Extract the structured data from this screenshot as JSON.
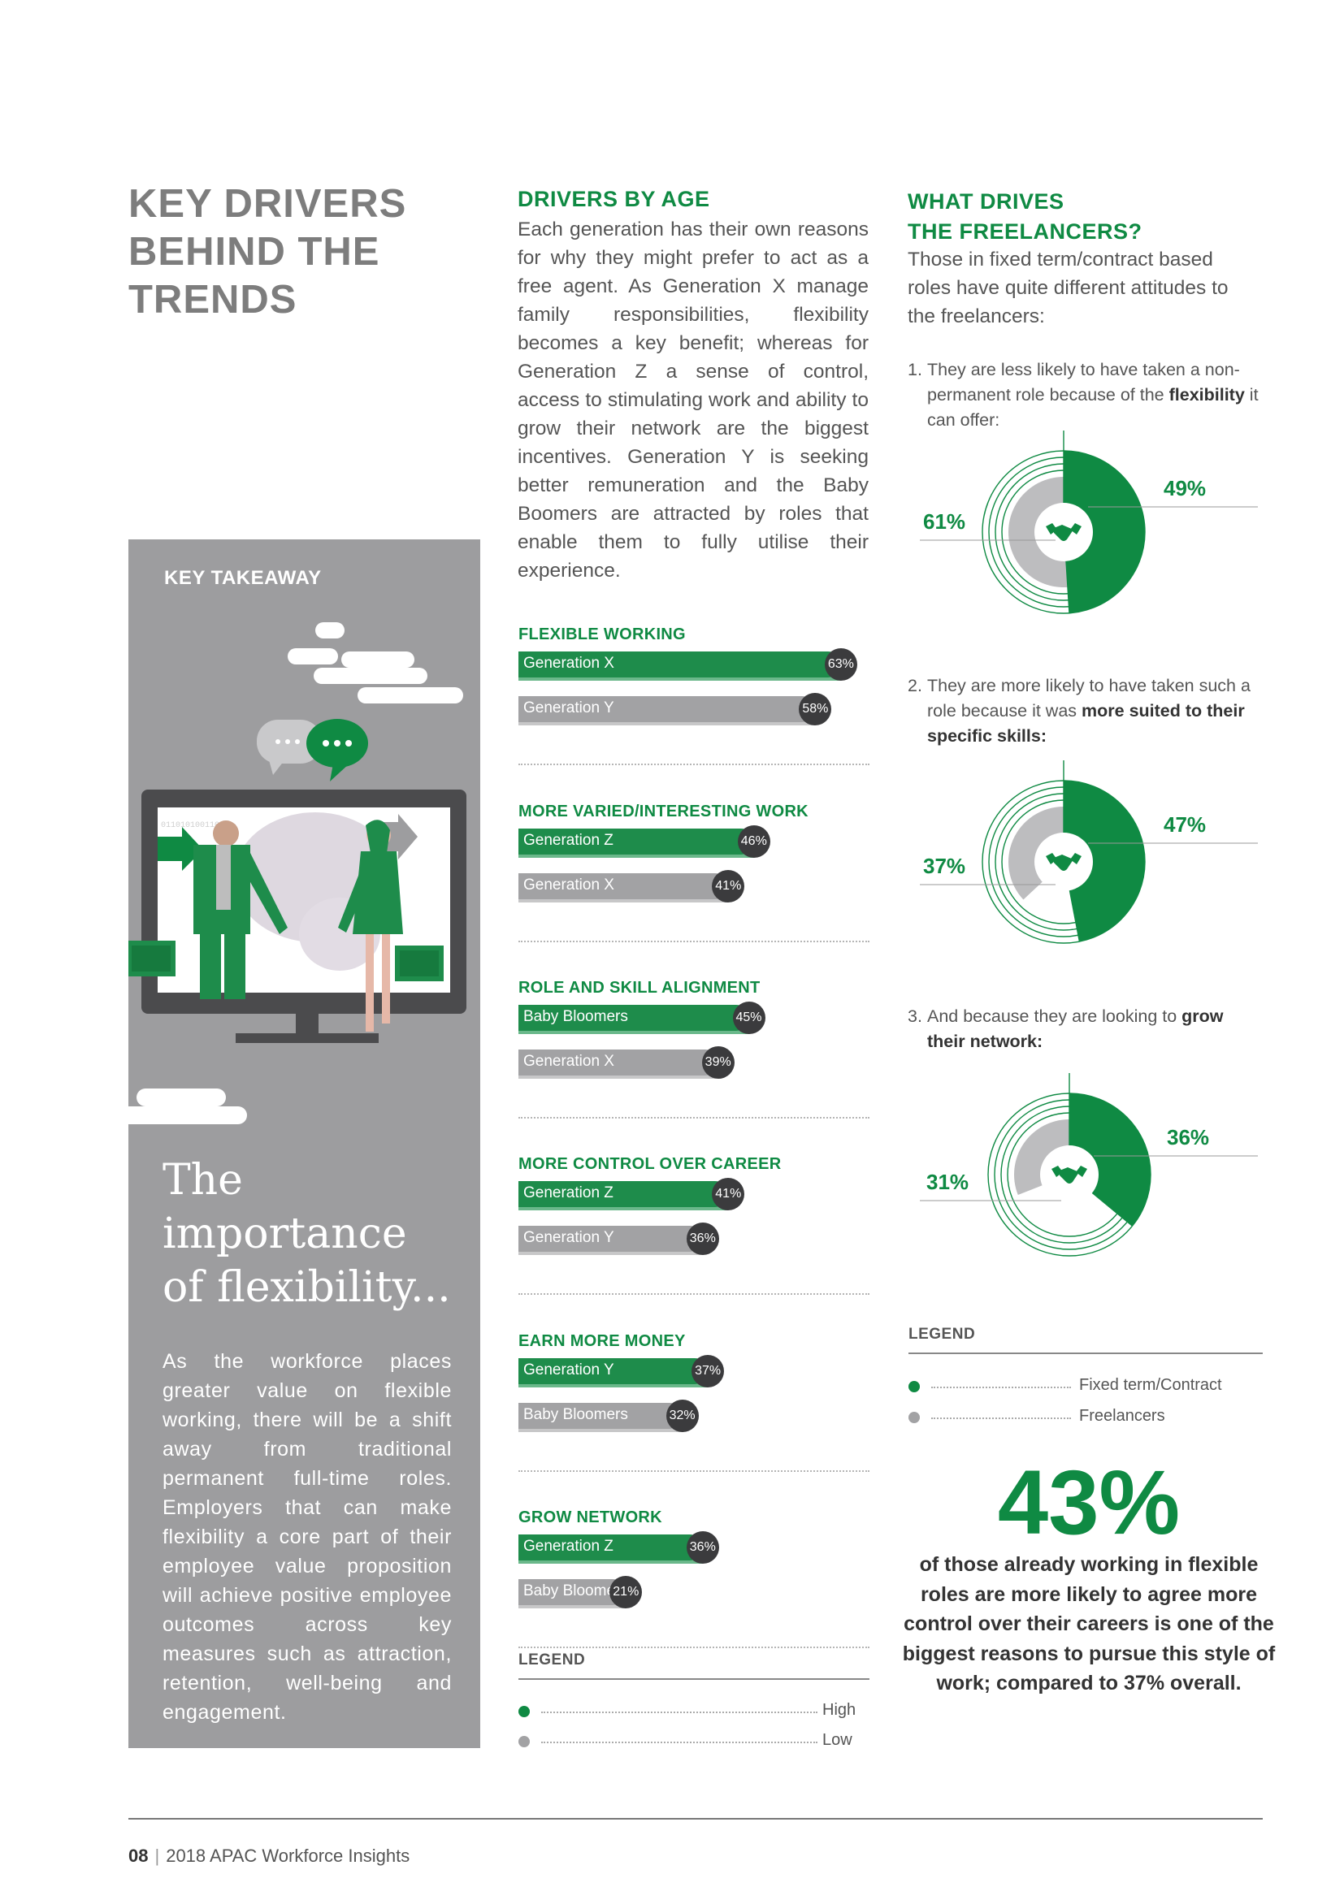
{
  "left": {
    "main_title": "KEY DRIVERS\nBEHIND THE\nTRENDS",
    "takeaway_label": "KEY TAKEAWAY",
    "quote_title": "The\nimportance\nof flexibility...",
    "body": "As the workforce places greater value on flexible working, there will be a shift away from traditional permanent full-time roles. Employers that can make flexibility a core part of their employee value proposition will achieve positive employee outcomes across key measures such as attraction, retention, well-being and engagement.",
    "monitor_text": "01101010011010"
  },
  "middle": {
    "title": "DRIVERS BY AGE",
    "body": "Each generation has their own reasons for why they might prefer to act as a free agent. As Generation X manage family responsibilities, flexibility becomes a key benefit; whereas for Generation Z a sense of control, access to stimulating work and ability to grow their network are the biggest incentives. Generation Y is seeking better remuneration and the Baby Boomers are attracted by roles that enable them to fully utilise their experience.",
    "legend_title": "LEGEND",
    "legend_high": "High",
    "legend_low": "Low"
  },
  "chart_data": {
    "type": "bar",
    "title": "Drivers by age",
    "legend": [
      "High",
      "Low"
    ],
    "xlim": [
      0,
      100
    ],
    "groups": [
      {
        "title": "FLEXIBLE WORKING",
        "bars": [
          {
            "name": "Generation X",
            "value": 63,
            "value_label": "63%",
            "level": "high"
          },
          {
            "name": "Generation Y",
            "value": 58,
            "value_label": "58%",
            "level": "low"
          }
        ]
      },
      {
        "title": "MORE VARIED/INTERESTING WORK",
        "bars": [
          {
            "name": "Generation Z",
            "value": 46,
            "value_label": "46%",
            "level": "high"
          },
          {
            "name": "Generation X",
            "value": 41,
            "value_label": "41%",
            "level": "low"
          }
        ]
      },
      {
        "title": "ROLE AND SKILL ALIGNMENT",
        "bars": [
          {
            "name": "Baby Bloomers",
            "value": 45,
            "value_label": "45%",
            "level": "high"
          },
          {
            "name": "Generation X",
            "value": 39,
            "value_label": "39%",
            "level": "low"
          }
        ]
      },
      {
        "title": "MORE CONTROL OVER CAREER",
        "bars": [
          {
            "name": "Generation Z",
            "value": 41,
            "value_label": "41%",
            "level": "high"
          },
          {
            "name": "Generation Y",
            "value": 36,
            "value_label": "36%",
            "level": "low"
          }
        ]
      },
      {
        "title": "EARN MORE MONEY",
        "bars": [
          {
            "name": "Generation Y",
            "value": 37,
            "value_label": "37%",
            "level": "high"
          },
          {
            "name": "Baby Bloomers",
            "value": 32,
            "value_label": "32%",
            "level": "low"
          }
        ]
      },
      {
        "title": "GROW NETWORK",
        "bars": [
          {
            "name": "Generation Z",
            "value": 36,
            "value_label": "36%",
            "level": "high"
          },
          {
            "name": "Baby Bloomers",
            "value": 21,
            "value_label": "21%",
            "level": "low"
          }
        ]
      }
    ],
    "donuts": [
      {
        "type": "pie",
        "fixed_term": 49,
        "freelancers": 61,
        "fixed_label": "49%",
        "free_label": "61%"
      },
      {
        "type": "pie",
        "fixed_term": 47,
        "freelancers": 37,
        "fixed_label": "47%",
        "free_label": "37%"
      },
      {
        "type": "pie",
        "fixed_term": 36,
        "freelancers": 31,
        "fixed_label": "36%",
        "free_label": "31%"
      }
    ]
  },
  "right": {
    "title": "WHAT DRIVES\nTHE FREELANCERS?",
    "intro": "Those in fixed term/contract based roles have quite different attitudes to the freelancers:",
    "points": [
      {
        "num": "1.",
        "pre": "They are less likely to have taken a non-permanent role because of the ",
        "bold": "flexibility",
        "post": " it can offer:"
      },
      {
        "num": "2.",
        "pre": "They are more likely to have taken such a role because it was ",
        "bold": "more suited to their specific skills:",
        "post": ""
      },
      {
        "num": "3.",
        "pre": "And because they are looking to ",
        "bold": "grow their network:",
        "post": ""
      }
    ],
    "legend_title": "LEGEND",
    "legend_fixed": "Fixed term/Contract",
    "legend_free": "Freelancers",
    "big_stat": "43%",
    "big_stat_text": "of those already working in flexible roles are more likely to agree more control over their careers is one of the biggest reasons to pursue this style of work; compared to 37% overall."
  },
  "footer": {
    "page": "08",
    "title": "2018 APAC Workforce Insights"
  },
  "colors": {
    "green": "#0f8a43",
    "gray": "#a2a2a4",
    "panel": "#9d9d9f"
  }
}
